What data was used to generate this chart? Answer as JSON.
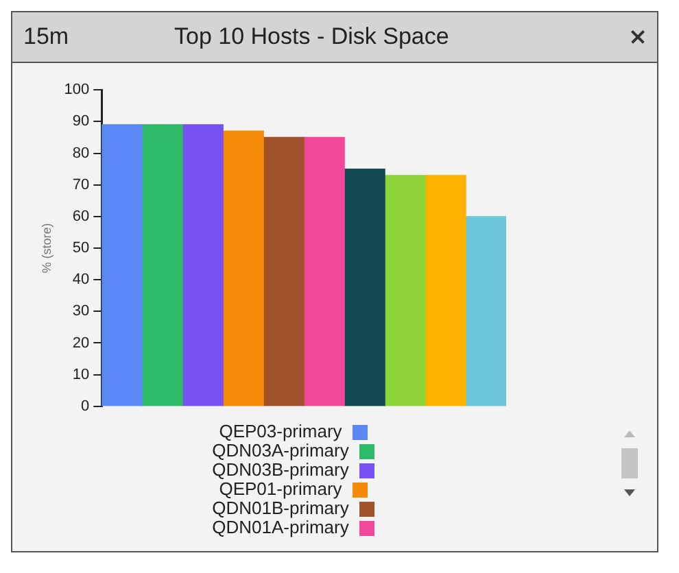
{
  "chart_data": {
    "type": "bar",
    "title": "Top 10 Hosts - Disk Space",
    "ylabel": "% (store)",
    "annotations": [
      "15m"
    ],
    "categories": [
      null
    ],
    "series": [
      {
        "name": "QEP03-primary",
        "color": "#5b86f5",
        "values": [
          89
        ]
      },
      {
        "name": "QDN03A-primary",
        "color": "#2db86a",
        "values": [
          89
        ]
      },
      {
        "name": "QDN03B-primary",
        "color": "#7950f2",
        "values": [
          89
        ]
      },
      {
        "name": "QEP01-primary",
        "color": "#f58a07",
        "values": [
          87
        ]
      },
      {
        "name": "QDN01B-primary",
        "color": "#a0522d",
        "values": [
          85
        ]
      },
      {
        "name": "QDN01A-primary",
        "color": "#f2479a",
        "values": [
          85
        ]
      },
      {
        "color": "#134a55",
        "values": [
          75
        ]
      },
      {
        "color": "#8ed43a",
        "values": [
          73
        ]
      },
      {
        "color": "#fdb000",
        "values": [
          73
        ]
      },
      {
        "color": "#6cc6d9",
        "values": [
          60
        ]
      }
    ],
    "ylim": [
      0,
      100
    ],
    "yticks": [
      0,
      10,
      20,
      30,
      40,
      50,
      60,
      70,
      80,
      90,
      100
    ],
    "grid": false,
    "legend": "bottom",
    "tick_labels": "y"
  }
}
